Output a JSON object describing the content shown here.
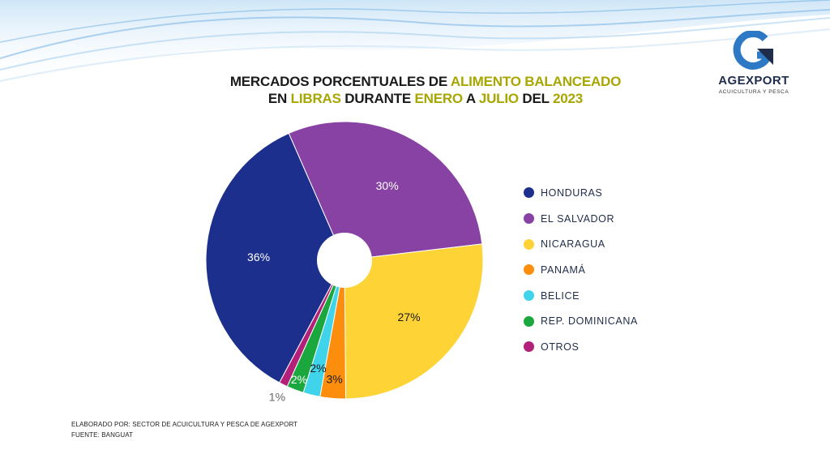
{
  "title": {
    "line1": [
      {
        "text": "MERCADOS PORCENTUALES DE ",
        "highlight": false
      },
      {
        "text": "ALIMENTO BALANCEADO",
        "highlight": true
      }
    ],
    "line2": [
      {
        "text": "EN ",
        "highlight": false
      },
      {
        "text": "LIBRAS",
        "highlight": true
      },
      {
        "text": " DURANTE ",
        "highlight": false
      },
      {
        "text": "ENERO",
        "highlight": true
      },
      {
        "text": " A ",
        "highlight": false
      },
      {
        "text": "JULIO",
        "highlight": true
      },
      {
        "text": " DEL ",
        "highlight": false
      },
      {
        "text": "2023",
        "highlight": true
      }
    ]
  },
  "logo": {
    "name": "AGEXPORT",
    "subtitle": "ACUICULTURA Y PESCA",
    "icon": "agexport-g-arrow-icon"
  },
  "colors": {
    "title_highlight": "#a8a600",
    "brand_blue": "#2e79c5"
  },
  "chart_data": {
    "type": "pie",
    "donut_hole": true,
    "legend_position": "right",
    "slices": [
      {
        "label": "HONDURAS",
        "value": 36,
        "display": "36%",
        "color": "#1c2f8d"
      },
      {
        "label": "EL SALVADOR",
        "value": 30,
        "display": "30%",
        "color": "#8742a3"
      },
      {
        "label": "NICARAGUA",
        "value": 27,
        "display": "27%",
        "color": "#fed335"
      },
      {
        "label": "PANAMÁ",
        "value": 3,
        "display": "3%",
        "color": "#fd8d0d"
      },
      {
        "label": "BELICE",
        "value": 2,
        "display": "2%",
        "color": "#3fd4ea"
      },
      {
        "label": "REP. DOMINICANA",
        "value": 2,
        "display": "2%",
        "color": "#1aa83e"
      },
      {
        "label": "OTROS",
        "value": 1,
        "display": "1%",
        "color": "#b32079"
      }
    ]
  },
  "footer": {
    "line1": "ELABORADO POR: SECTOR DE ACUICULTURA Y PESCA DE AGEXPORT",
    "line2": "FUENTE:  BANGUAT"
  }
}
